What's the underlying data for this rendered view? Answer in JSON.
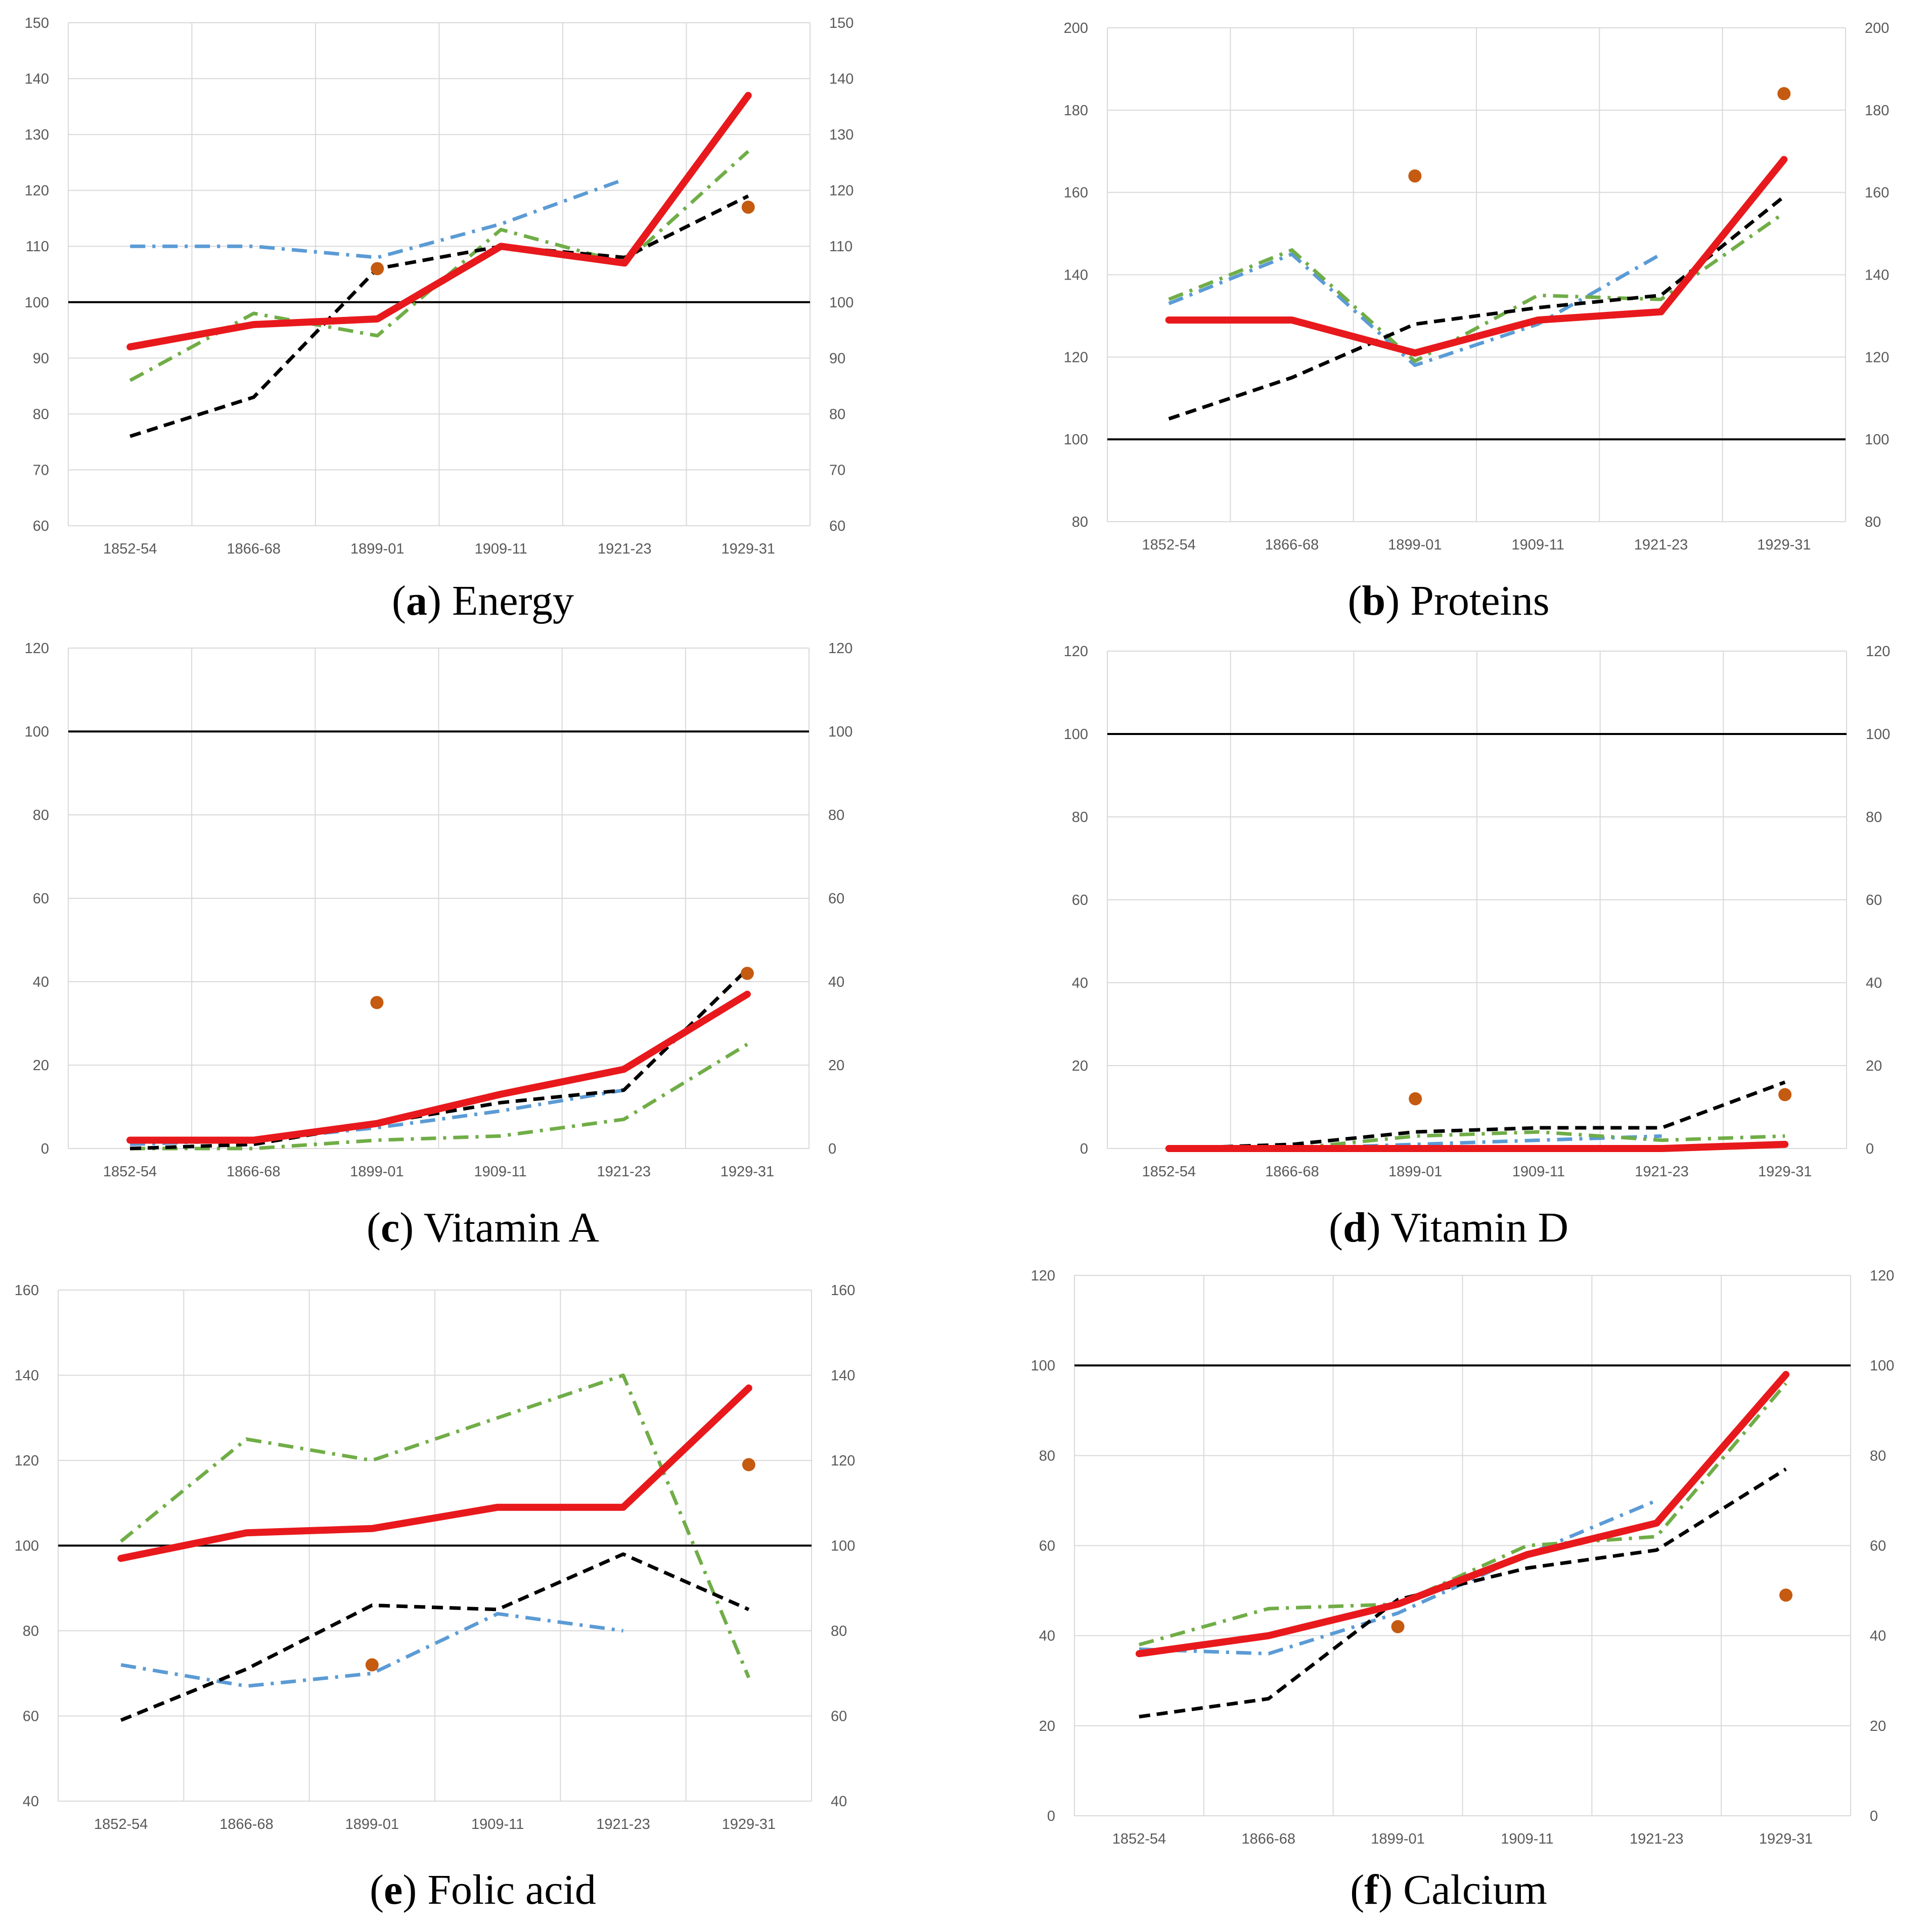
{
  "colors": {
    "red": "#e8191c",
    "black": "#000000",
    "blue": "#5b9bd5",
    "green": "#70ad47",
    "orange": "#c55a11",
    "grid": "#d9d9d9",
    "tick": "#595959",
    "reference": "#000000"
  },
  "chart_data": [
    {
      "id": "a",
      "type": "line",
      "caption_letter": "a",
      "caption_text": "Energy",
      "categories": [
        "1852-54",
        "1866-68",
        "1899-01",
        "1909-11",
        "1921-23",
        "1929-31"
      ],
      "ylim": [
        60,
        150
      ],
      "yticks": [
        60,
        70,
        80,
        90,
        100,
        110,
        120,
        130,
        140,
        150
      ],
      "reference_line": 100,
      "grid": true,
      "series": [
        {
          "style": "red",
          "values": [
            92,
            96,
            97,
            110,
            107,
            137
          ]
        },
        {
          "style": "black",
          "values": [
            76,
            83,
            106,
            110,
            108,
            119
          ]
        },
        {
          "style": "blue",
          "values": [
            110,
            110,
            108,
            114,
            122,
            null
          ]
        },
        {
          "style": "green",
          "values": [
            86,
            98,
            94,
            113,
            107,
            127
          ]
        },
        {
          "style": "orange-point",
          "values": [
            null,
            null,
            106,
            null,
            null,
            117
          ]
        }
      ]
    },
    {
      "id": "b",
      "type": "line",
      "caption_letter": "b",
      "caption_text": "Proteins",
      "categories": [
        "1852-54",
        "1866-68",
        "1899-01",
        "1909-11",
        "1921-23",
        "1929-31"
      ],
      "ylim": [
        80,
        200
      ],
      "yticks": [
        80,
        100,
        120,
        140,
        160,
        180,
        200
      ],
      "reference_line": 100,
      "grid": true,
      "series": [
        {
          "style": "red",
          "values": [
            129,
            129,
            121,
            129,
            131,
            168
          ]
        },
        {
          "style": "black",
          "values": [
            105,
            115,
            128,
            132,
            135,
            159
          ]
        },
        {
          "style": "blue",
          "values": [
            133,
            145,
            118,
            128,
            145,
            null
          ]
        },
        {
          "style": "green",
          "values": [
            134,
            146,
            119,
            135,
            134,
            155
          ]
        },
        {
          "style": "orange-point",
          "values": [
            null,
            null,
            164,
            null,
            null,
            184
          ]
        }
      ]
    },
    {
      "id": "c",
      "type": "line",
      "caption_letter": "c",
      "caption_text": "Vitamin A",
      "categories": [
        "1852-54",
        "1866-68",
        "1899-01",
        "1909-11",
        "1921-23",
        "1929-31"
      ],
      "ylim": [
        0,
        120
      ],
      "yticks": [
        0,
        20,
        40,
        60,
        80,
        100,
        120
      ],
      "reference_line": 100,
      "grid": true,
      "series": [
        {
          "style": "red",
          "values": [
            2,
            2,
            6,
            13,
            19,
            37
          ]
        },
        {
          "style": "black",
          "values": [
            0,
            1,
            6,
            11,
            14,
            43
          ]
        },
        {
          "style": "blue",
          "values": [
            1,
            2,
            5,
            9,
            14,
            null
          ]
        },
        {
          "style": "green",
          "values": [
            0,
            0,
            2,
            3,
            7,
            25
          ]
        },
        {
          "style": "orange-point",
          "values": [
            null,
            null,
            35,
            null,
            null,
            42
          ]
        }
      ]
    },
    {
      "id": "d",
      "type": "line",
      "caption_letter": "d",
      "caption_text": "Vitamin D",
      "categories": [
        "1852-54",
        "1866-68",
        "1899-01",
        "1909-11",
        "1921-23",
        "1929-31"
      ],
      "ylim": [
        0,
        120
      ],
      "yticks": [
        0,
        20,
        40,
        60,
        80,
        100,
        120
      ],
      "reference_line": 100,
      "grid": true,
      "series": [
        {
          "style": "red",
          "values": [
            0,
            0,
            0,
            0,
            0,
            1
          ]
        },
        {
          "style": "black",
          "values": [
            0,
            1,
            4,
            5,
            5,
            16
          ]
        },
        {
          "style": "blue",
          "values": [
            0,
            0,
            1,
            2,
            3,
            null
          ]
        },
        {
          "style": "green",
          "values": [
            0,
            0,
            3,
            4,
            2,
            3
          ]
        },
        {
          "style": "orange-point",
          "values": [
            null,
            null,
            12,
            null,
            null,
            13
          ]
        }
      ]
    },
    {
      "id": "e",
      "type": "line",
      "caption_letter": "e",
      "caption_text": "Folic acid",
      "categories": [
        "1852-54",
        "1866-68",
        "1899-01",
        "1909-11",
        "1921-23",
        "1929-31"
      ],
      "ylim": [
        40,
        160
      ],
      "yticks": [
        40,
        60,
        80,
        100,
        120,
        140,
        160
      ],
      "reference_line": 100,
      "grid": true,
      "series": [
        {
          "style": "red",
          "values": [
            97,
            103,
            104,
            109,
            109,
            137
          ]
        },
        {
          "style": "black",
          "values": [
            59,
            71,
            86,
            85,
            98,
            85
          ]
        },
        {
          "style": "blue",
          "values": [
            72,
            67,
            70,
            84,
            80,
            null
          ]
        },
        {
          "style": "green",
          "values": [
            101,
            125,
            120,
            130,
            140,
            69
          ]
        },
        {
          "style": "orange-point",
          "values": [
            null,
            null,
            72,
            null,
            null,
            119
          ]
        }
      ]
    },
    {
      "id": "f",
      "type": "line",
      "caption_letter": "f",
      "caption_text": "Calcium",
      "categories": [
        "1852-54",
        "1866-68",
        "1899-01",
        "1909-11",
        "1921-23",
        "1929-31"
      ],
      "ylim": [
        0,
        120
      ],
      "yticks": [
        0,
        20,
        40,
        60,
        80,
        100,
        120
      ],
      "reference_line": 100,
      "grid": true,
      "series": [
        {
          "style": "red",
          "values": [
            36,
            40,
            47,
            58,
            65,
            98
          ]
        },
        {
          "style": "black",
          "values": [
            22,
            26,
            48,
            55,
            59,
            77
          ]
        },
        {
          "style": "blue",
          "values": [
            37,
            36,
            45,
            58,
            70,
            null
          ]
        },
        {
          "style": "green",
          "values": [
            38,
            46,
            47,
            60,
            62,
            96
          ]
        },
        {
          "style": "orange-point",
          "values": [
            null,
            null,
            42,
            null,
            null,
            49
          ]
        }
      ]
    }
  ]
}
